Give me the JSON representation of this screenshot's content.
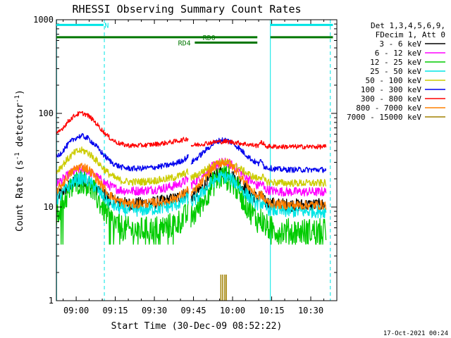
{
  "chart_data": {
    "type": "line",
    "title": "RHESSI Observing Summary Count Rates",
    "xlabel": "Start Time (30-Dec-09 08:52:22)",
    "ylabel_main": "Count Rate (s",
    "ylabel_sup1": "-1",
    "ylabel_mid": " detector",
    "ylabel_sup2": "-1",
    "ylabel_end": ")",
    "yscale": "log",
    "ylim": [
      1,
      1000
    ],
    "xlim_minutes": [
      -7.6,
      100
    ],
    "x_ticks": [
      {
        "t": 0,
        "label": "09:00"
      },
      {
        "t": 15,
        "label": "09:15"
      },
      {
        "t": 30,
        "label": "09:30"
      },
      {
        "t": 45,
        "label": "09:45"
      },
      {
        "t": 60,
        "label": "10:00"
      },
      {
        "t": 75,
        "label": "10:15"
      },
      {
        "t": 90,
        "label": "10:30"
      }
    ],
    "y_ticks": [
      {
        "v": 1,
        "label": "1"
      },
      {
        "v": 10,
        "label": "10"
      },
      {
        "v": 100,
        "label": "100"
      },
      {
        "v": 1000,
        "label": "1000"
      }
    ],
    "legend_header": [
      "Det 1,3,4,5,6,9,",
      "FDecim 1, Att 0"
    ],
    "series": [
      {
        "name": "3 - 6 keV",
        "color": "#000000",
        "qbase": 10.5,
        "peak1": 19,
        "peak2": 23,
        "noise": 0.07,
        "sfact": 1.0,
        "cut": 0,
        "sat": false
      },
      {
        "name": "6 - 12 keV",
        "color": "#ff00ff",
        "qbase": 14.5,
        "peak1": 25,
        "peak2": 30,
        "noise": 0.05,
        "sfact": 1.0,
        "cut": 0,
        "sat": false
      },
      {
        "name": "12 - 25 keV",
        "color": "#00cc00",
        "qbase": 5.5,
        "peak1": 19,
        "peak2": 21,
        "noise": 0.14,
        "sfact": 1.0,
        "cut": 4.0,
        "sat": false
      },
      {
        "name": "25 - 50 keV",
        "color": "#00e5e5",
        "qbase": 9.0,
        "peak1": 20,
        "peak2": 21,
        "noise": 0.07,
        "sfact": 0.9,
        "cut": 0,
        "sat": false
      },
      {
        "name": "50 - 100 keV",
        "color": "#cccc00",
        "qbase": 18.0,
        "peak1": 40,
        "peak2": 30,
        "noise": 0.04,
        "sfact": 1.0,
        "cut": 0,
        "sat": false
      },
      {
        "name": "100 - 300 keV",
        "color": "#0000ee",
        "qbase": 25.0,
        "peak1": 57,
        "peak2": 52,
        "noise": 0.03,
        "sfact": 1.0,
        "cut": 0,
        "sat": false
      },
      {
        "name": "300 - 800 keV",
        "color": "#ff0000",
        "qbase": 44.0,
        "peak1": 100,
        "peak2": 50,
        "noise": 0.025,
        "sfact": 1.0,
        "cut": 0,
        "sat": false
      },
      {
        "name": "800 - 7000 keV",
        "color": "#ff8000",
        "qbase": 10.5,
        "peak1": 27,
        "peak2": 30,
        "noise": 0.05,
        "sfact": 1.0,
        "cut": 0,
        "sat": false
      },
      {
        "name": "7000 - 15000 keV",
        "color": "#a08000",
        "qbase": 1.0,
        "peak1": 1.0,
        "peak2": 1.0,
        "noise": 0.0,
        "sfact": 1.0,
        "cut": 0,
        "sat": false
      }
    ],
    "profile": {
      "peak1_t": 2.0,
      "peak2_t": 56.5,
      "trough_start": 12,
      "trough_end": 40,
      "gap_start": 43,
      "gap_end": 44,
      "recover_t": 70,
      "end_t": 96
    },
    "spikes_7000": {
      "t_minutes": [
        55.5,
        56.2,
        57.0,
        57.6
      ],
      "value": 1.9
    },
    "state_bars": [
      {
        "label": "N",
        "color": "#00e5e5",
        "segments": [
          [
            -7.6,
            10.5
          ],
          [
            74.5,
            98.5
          ]
        ],
        "level": 880,
        "label_t": 11.7
      },
      {
        "label": "RD0",
        "color": "#007700",
        "segments": [
          [
            -7.6,
            69.5
          ],
          [
            74.5,
            98.5
          ]
        ],
        "level": 650,
        "label_t": 51.0
      },
      {
        "label": "RD4",
        "color": "#007700",
        "segments": [
          [
            45.5,
            69.5
          ]
        ],
        "level": 570,
        "label_t": 41.5
      }
    ],
    "vlines": [
      {
        "t": -7.5,
        "color": "#00e5e5",
        "style": "solid"
      },
      {
        "t": 10.8,
        "color": "#00e5e5",
        "style": "dashed"
      },
      {
        "t": 74.5,
        "color": "#00e5e5",
        "style": "solid"
      },
      {
        "t": 97.5,
        "color": "#00e5e5",
        "style": "dashed"
      }
    ],
    "timestamp": "17-Oct-2021 00:24"
  }
}
